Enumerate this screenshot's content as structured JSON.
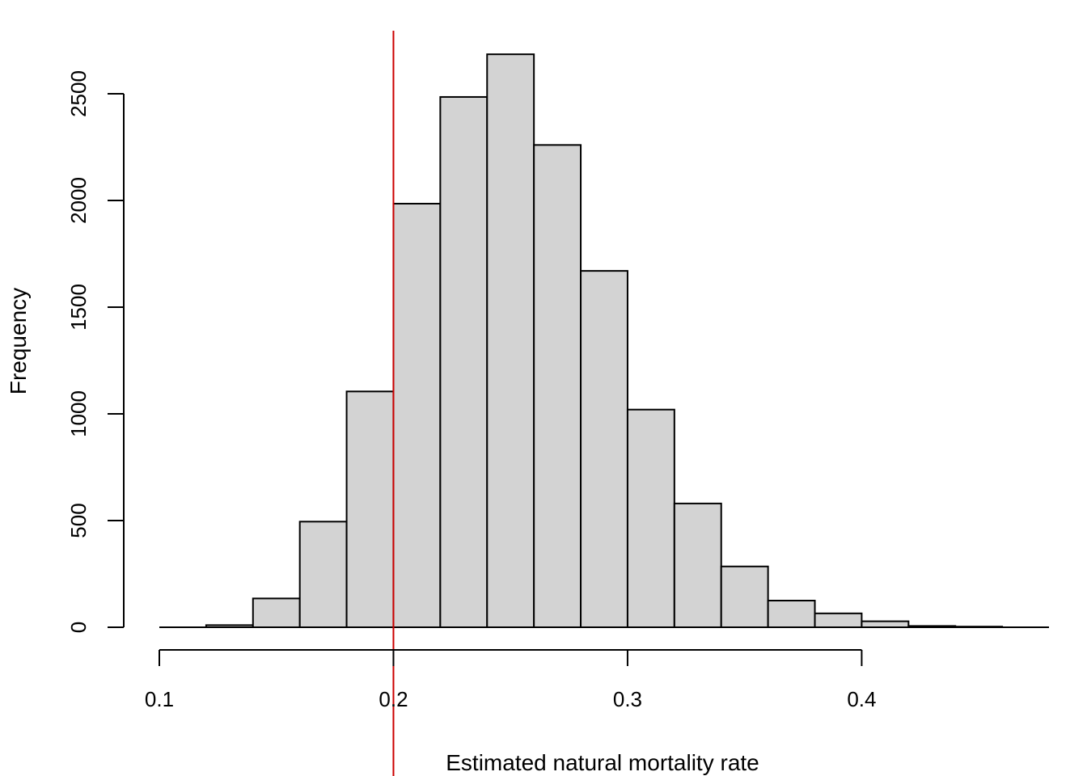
{
  "chart_data": {
    "type": "bar",
    "subtype": "histogram",
    "title": "",
    "xlabel": "Estimated natural mortality rate",
    "ylabel": "Frequency",
    "bin_width": 0.02,
    "bins": [
      {
        "start": 0.12,
        "end": 0.14,
        "count": 10
      },
      {
        "start": 0.14,
        "end": 0.16,
        "count": 135
      },
      {
        "start": 0.16,
        "end": 0.18,
        "count": 495
      },
      {
        "start": 0.18,
        "end": 0.2,
        "count": 1105
      },
      {
        "start": 0.2,
        "end": 0.22,
        "count": 1985
      },
      {
        "start": 0.22,
        "end": 0.24,
        "count": 2485
      },
      {
        "start": 0.24,
        "end": 0.26,
        "count": 2685
      },
      {
        "start": 0.26,
        "end": 0.28,
        "count": 2260
      },
      {
        "start": 0.28,
        "end": 0.3,
        "count": 1670
      },
      {
        "start": 0.3,
        "end": 0.32,
        "count": 1020
      },
      {
        "start": 0.32,
        "end": 0.34,
        "count": 580
      },
      {
        "start": 0.34,
        "end": 0.36,
        "count": 285
      },
      {
        "start": 0.36,
        "end": 0.38,
        "count": 125
      },
      {
        "start": 0.38,
        "end": 0.4,
        "count": 65
      },
      {
        "start": 0.4,
        "end": 0.42,
        "count": 28
      },
      {
        "start": 0.42,
        "end": 0.44,
        "count": 6
      },
      {
        "start": 0.44,
        "end": 0.46,
        "count": 3
      }
    ],
    "xlim": [
      0.1,
      0.48
    ],
    "ylim": [
      0,
      2800
    ],
    "x_ticks": [
      0.1,
      0.2,
      0.3,
      0.4
    ],
    "x_tick_labels": [
      "0.1",
      "0.2",
      "0.3",
      "0.4"
    ],
    "y_ticks": [
      0,
      500,
      1000,
      1500,
      2000,
      2500
    ],
    "y_tick_labels": [
      "0",
      "500",
      "1000",
      "1500",
      "2000",
      "2500"
    ],
    "reference_line": {
      "x": 0.2,
      "color": "#cc0000"
    },
    "bar_fill": "#d3d3d3",
    "bar_stroke": "#000000",
    "grid": false,
    "legend": "none"
  }
}
